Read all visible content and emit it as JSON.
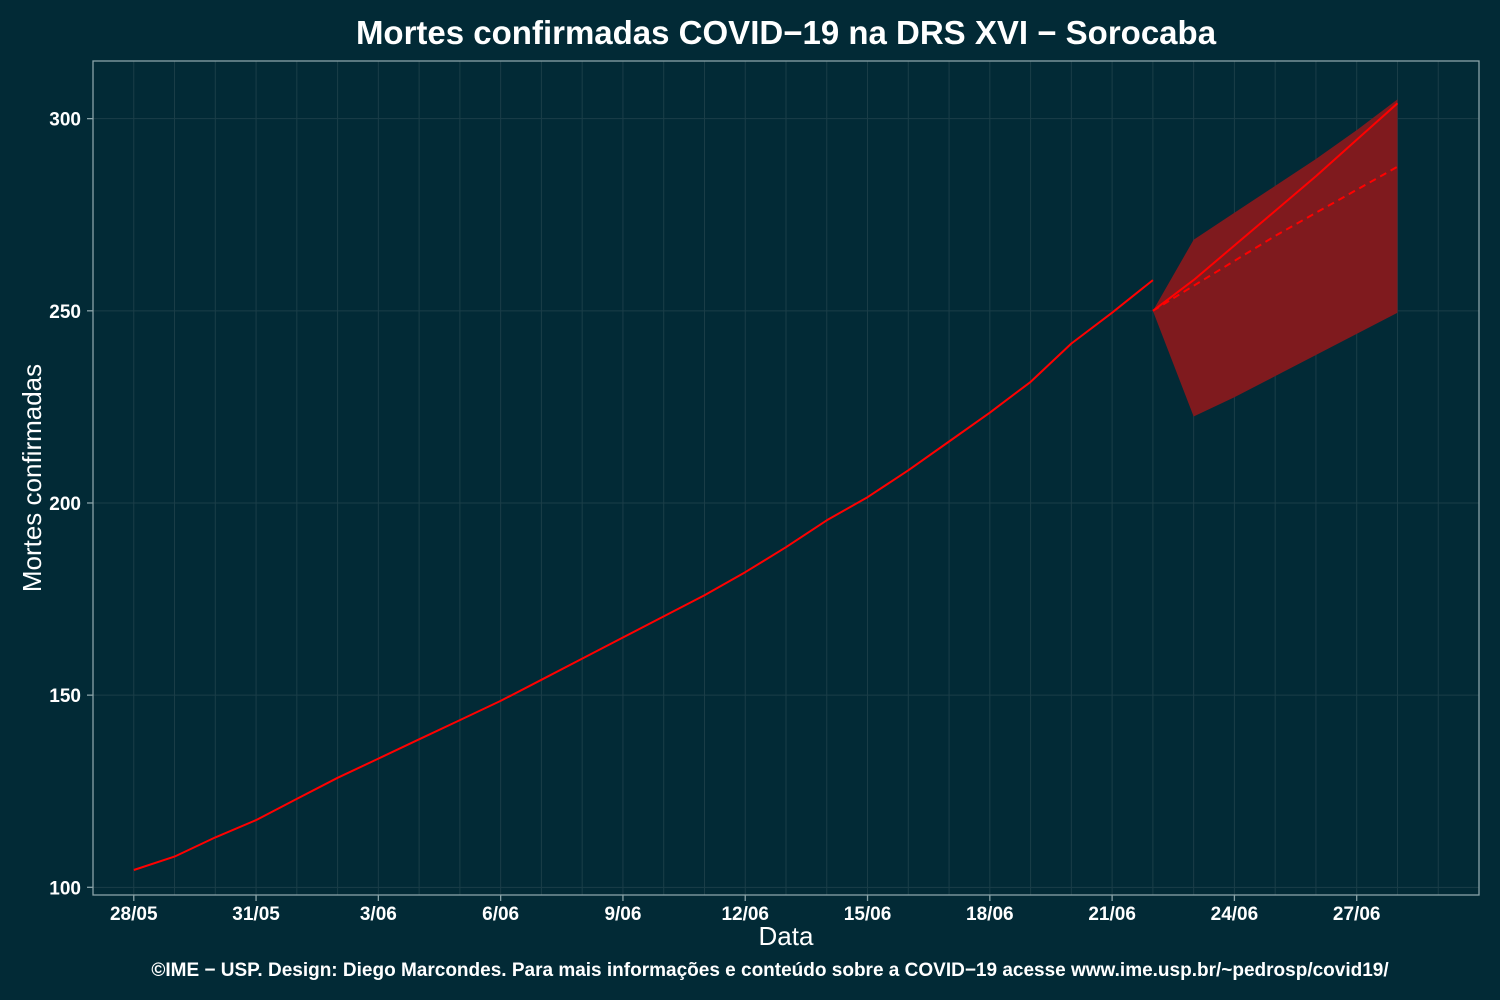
{
  "chart_data": {
    "type": "line",
    "title": "Mortes confirmadas COVID−19 na DRS XVI − Sorocaba",
    "xlabel": "Data",
    "ylabel": "Mortes confirmadas",
    "caption": "©IME − USP. Design: Diego Marcondes. Para mais informações e conteúdo sobre a COVID−19 acesse www.ime.usp.br/~pedrosp/covid19/",
    "x_tick_labels": [
      "28/05",
      "31/05",
      "3/06",
      "6/06",
      "9/06",
      "12/06",
      "15/06",
      "18/06",
      "21/06",
      "24/06",
      "27/06"
    ],
    "y_ticks": [
      100,
      150,
      200,
      250,
      300
    ],
    "ylim": [
      98,
      315
    ],
    "xlim": [
      "27/05",
      "30/06"
    ],
    "grid": true,
    "colors": {
      "background": "#022a36",
      "line": "#ff0000",
      "band": "#7f1a1e",
      "grid": "#1b3e48",
      "frame": "#8aa3a8"
    },
    "series": [
      {
        "style": "solid",
        "x": [
          "28/05",
          "29/05",
          "30/05",
          "31/05",
          "1/06",
          "2/06",
          "3/06",
          "4/06",
          "5/06",
          "6/06",
          "7/06",
          "8/06",
          "9/06",
          "10/06",
          "11/06",
          "12/06",
          "13/06",
          "14/06",
          "15/06",
          "16/06",
          "17/06",
          "18/06",
          "19/06",
          "20/06",
          "21/06",
          "22/06"
        ],
        "y": [
          104.5,
          108,
          113,
          117.5,
          123,
          128.5,
          133.5,
          138.5,
          143.5,
          148.5,
          154,
          159.5,
          165,
          170.5,
          176,
          182,
          188.5,
          195.5,
          201.5,
          208.5,
          216,
          223.5,
          231.5,
          241.5,
          249.5,
          258
        ]
      },
      {
        "style": "solid",
        "x": [
          "22/06",
          "23/06",
          "24/06",
          "25/06",
          "26/06",
          "27/06",
          "28/06"
        ],
        "y": [
          250,
          258,
          267,
          276,
          285,
          294.5,
          304
        ]
      },
      {
        "style": "dashed",
        "x": [
          "22/06",
          "23/06",
          "24/06",
          "25/06",
          "26/06",
          "27/06",
          "28/06"
        ],
        "y": [
          250,
          256.5,
          263,
          269.5,
          275.5,
          281.5,
          287.5
        ]
      }
    ],
    "band": {
      "x": [
        "22/06",
        "23/06",
        "24/06",
        "25/06",
        "26/06",
        "27/06",
        "28/06"
      ],
      "upper": [
        250,
        268.5,
        275.5,
        282.5,
        289.5,
        297,
        305
      ],
      "lower": [
        250,
        222.5,
        227.5,
        233,
        238.5,
        244,
        249.5
      ]
    }
  }
}
